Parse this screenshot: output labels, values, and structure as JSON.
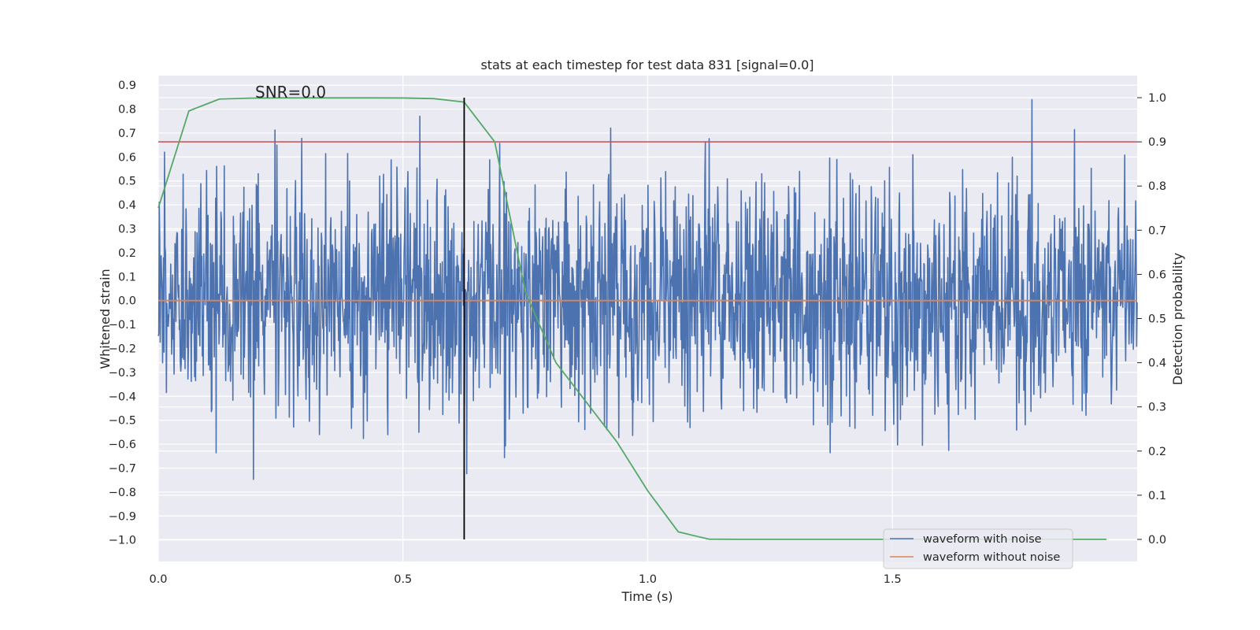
{
  "chart_data": {
    "type": "line",
    "title": "stats at each timestep for test data 831 [signal=0.0]",
    "annotation": "SNR=0.0",
    "xlabel": "Time (s)",
    "ylabel": "Whitened strain",
    "ylabel_right": "Detection probability",
    "xlim": [
      0.0,
      2.0
    ],
    "ylim": [
      -1.09,
      0.94
    ],
    "ylim_right": [
      -0.05,
      1.05
    ],
    "xticks": [
      0.0,
      0.5,
      1.0,
      1.5
    ],
    "xtick_labels": [
      "0.0",
      "0.5",
      "1.0",
      "1.5"
    ],
    "yticks": [
      0.9,
      0.8,
      0.7,
      0.6,
      0.5,
      0.4,
      0.3,
      0.2,
      0.1,
      0.0,
      -0.1,
      -0.2,
      -0.3,
      -0.4,
      -0.5,
      -0.6,
      -0.7,
      -0.8,
      -0.9,
      -1.0
    ],
    "ytick_labels": [
      "0.9",
      "0.8",
      "0.7",
      "0.6",
      "0.5",
      "0.4",
      "0.3",
      "0.2",
      "0.1",
      "0.0",
      "−0.1",
      "−0.2",
      "−0.3",
      "−0.4",
      "−0.5",
      "−0.6",
      "−0.7",
      "−0.8",
      "−0.9",
      "−1.0"
    ],
    "yticks_right": [
      1.0,
      0.9,
      0.8,
      0.7,
      0.6,
      0.5,
      0.4,
      0.3,
      0.2,
      0.1,
      0.0
    ],
    "ytick_labels_right": [
      "1.0",
      "0.9",
      "0.8",
      "0.7",
      "0.6",
      "0.5",
      "0.4",
      "0.3",
      "0.2",
      "0.1",
      "0.0"
    ],
    "series": [
      {
        "name": "waveform with noise",
        "color": "#4c72b0",
        "axis": "left",
        "noise": {
          "t_start": 0.0,
          "t_end": 2.0,
          "samples": 2048,
          "std": 0.24,
          "clip": [
            -1.0,
            0.84
          ],
          "seed": 831
        }
      },
      {
        "name": "waveform without noise",
        "color": "#dd8452",
        "axis": "left",
        "x": [
          0.0,
          2.0
        ],
        "y": [
          0.0,
          0.0
        ]
      },
      {
        "name": "detection probability",
        "color": "#55a868",
        "axis": "right",
        "x": [
          0.0,
          0.0625,
          0.125,
          0.1875,
          0.25,
          0.3125,
          0.375,
          0.4375,
          0.5,
          0.5625,
          0.625,
          0.6875,
          0.75,
          0.8125,
          0.875,
          0.9375,
          1.0,
          1.0625,
          1.125,
          1.1875,
          1.25,
          1.3125,
          1.375,
          1.4375,
          1.5,
          1.5625,
          1.625,
          1.6875,
          1.75,
          1.8125,
          1.875,
          1.9375
        ],
        "y": [
          0.75,
          0.97,
          0.997,
          0.999,
          0.9995,
          0.9995,
          0.9995,
          0.9995,
          0.9993,
          0.998,
          0.99,
          0.9,
          0.56,
          0.4,
          0.31,
          0.22,
          0.11,
          0.017,
          0.0005,
          0.0002,
          0.0001,
          0.0001,
          0.0001,
          0.0001,
          0.0001,
          0.0001,
          0.0001,
          0.0001,
          0.0001,
          0.0001,
          0.0001,
          0.0001
        ]
      }
    ],
    "threshold": {
      "value": 0.9,
      "axis": "right",
      "color": "#c44e52"
    },
    "vertical_marker": {
      "x": 0.625,
      "color": "#000000",
      "y_from": 1.0,
      "y_to": 0.0,
      "axis": "right"
    },
    "legend": {
      "location": "lower right",
      "entries": [
        {
          "label": "waveform with noise",
          "color": "#4c72b0"
        },
        {
          "label": "waveform without noise",
          "color": "#dd8452"
        }
      ]
    },
    "grid": true,
    "style": {
      "background": "#eaeaf2",
      "grid_color": "#ffffff"
    }
  }
}
